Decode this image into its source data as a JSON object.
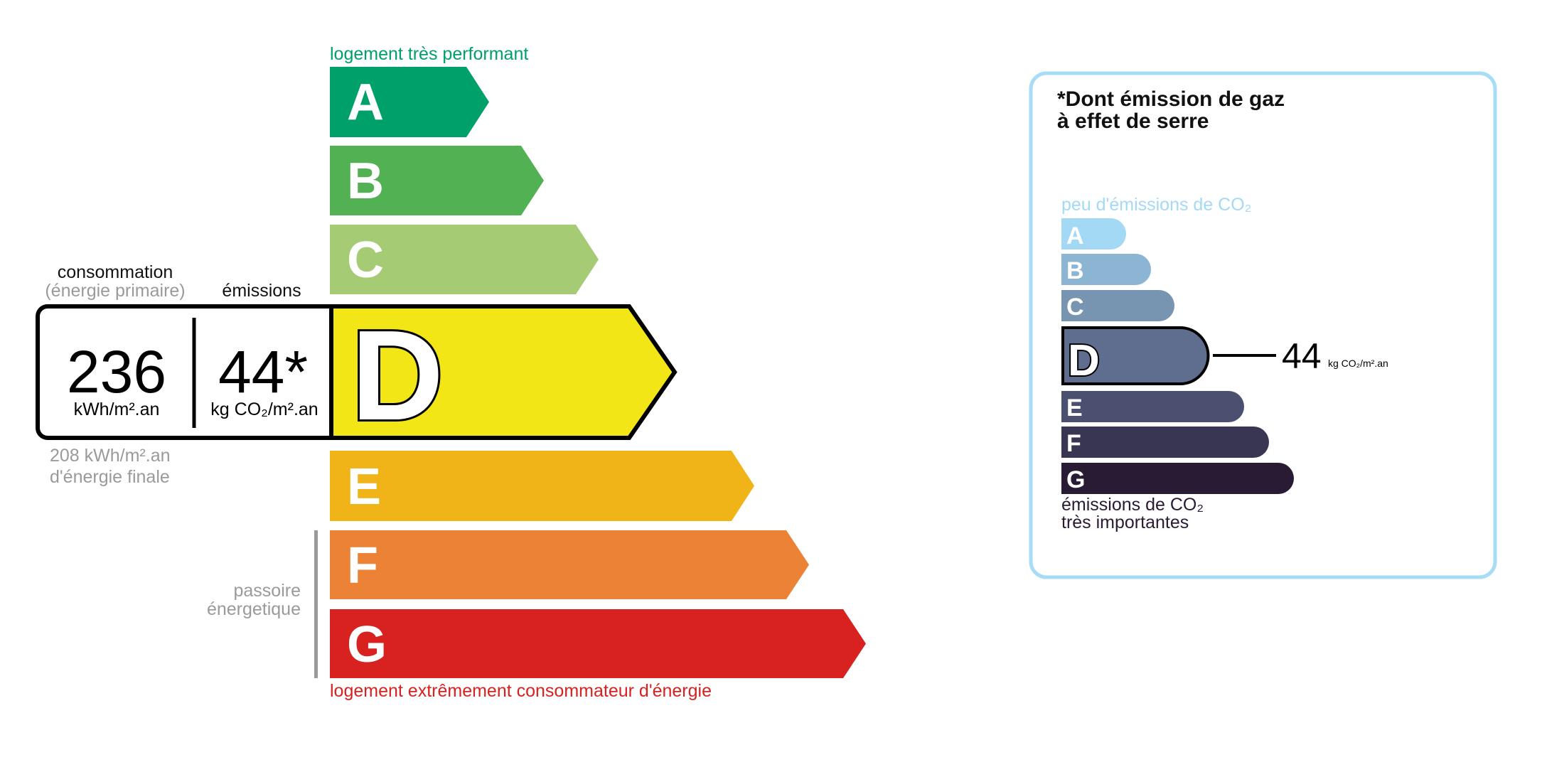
{
  "energy": {
    "top_label": "logement très performant",
    "bottom_label": "logement extrêmement consommateur d'énergie",
    "classes": [
      {
        "letter": "A",
        "color": "#00a06a"
      },
      {
        "letter": "B",
        "color": "#52b153"
      },
      {
        "letter": "C",
        "color": "#a5cc74"
      },
      {
        "letter": "D",
        "color": "#f2e617"
      },
      {
        "letter": "E",
        "color": "#f0b418"
      },
      {
        "letter": "F",
        "color": "#eb8235"
      },
      {
        "letter": "G",
        "color": "#d7221f"
      }
    ],
    "current_class": "D",
    "consumption_label": "consommation",
    "consumption_sublabel": "(énergie primaire)",
    "emissions_label": "émissions",
    "consumption_value": "236",
    "consumption_unit": "kWh/m².an",
    "emissions_value": "44*",
    "emissions_unit": "kg CO₂/m².an",
    "final_energy_value": "208 kWh/m².an",
    "final_energy_label": "d'énergie finale",
    "passoire_line1": "passoire",
    "passoire_line2": "énergetique"
  },
  "ges": {
    "title_line1": "*Dont émission de gaz",
    "title_line2": "à effet de serre",
    "top_label": "peu d'émissions de CO₂",
    "bottom_label_line1": "émissions de CO₂",
    "bottom_label_line2": "très importantes",
    "classes": [
      {
        "letter": "A",
        "color": "#a4d9f6"
      },
      {
        "letter": "B",
        "color": "#8cb4d3"
      },
      {
        "letter": "C",
        "color": "#7794b1"
      },
      {
        "letter": "D",
        "color": "#5f6e8f"
      },
      {
        "letter": "E",
        "color": "#4c5070"
      },
      {
        "letter": "F",
        "color": "#393654"
      },
      {
        "letter": "G",
        "color": "#291b34"
      }
    ],
    "current_class": "D",
    "value": "44",
    "unit": "kg CO₂/m².an",
    "border_color": "#a6dcf5"
  }
}
